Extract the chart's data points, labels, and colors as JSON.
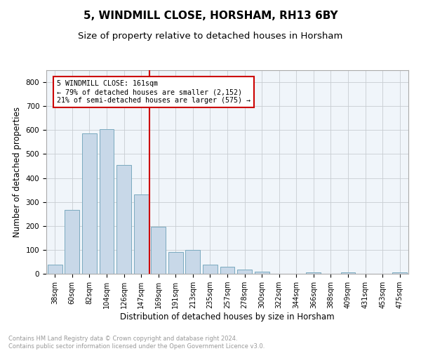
{
  "title": "5, WINDMILL CLOSE, HORSHAM, RH13 6BY",
  "subtitle": "Size of property relative to detached houses in Horsham",
  "xlabel": "Distribution of detached houses by size in Horsham",
  "ylabel": "Number of detached properties",
  "categories": [
    "38sqm",
    "60sqm",
    "82sqm",
    "104sqm",
    "126sqm",
    "147sqm",
    "169sqm",
    "191sqm",
    "213sqm",
    "235sqm",
    "257sqm",
    "278sqm",
    "300sqm",
    "322sqm",
    "344sqm",
    "366sqm",
    "388sqm",
    "409sqm",
    "431sqm",
    "453sqm",
    "475sqm"
  ],
  "values": [
    38,
    267,
    585,
    603,
    455,
    330,
    197,
    90,
    100,
    38,
    30,
    17,
    10,
    0,
    0,
    7,
    0,
    5,
    0,
    0,
    7
  ],
  "bar_color": "#c8d8e8",
  "bar_edge_color": "#7aaabf",
  "vline_color": "#cc0000",
  "annotation_text": "5 WINDMILL CLOSE: 161sqm\n← 79% of detached houses are smaller (2,152)\n21% of semi-detached houses are larger (575) →",
  "annotation_box_color": "#cc0000",
  "ylim": [
    0,
    850
  ],
  "yticks": [
    0,
    100,
    200,
    300,
    400,
    500,
    600,
    700,
    800
  ],
  "footer_text": "Contains HM Land Registry data © Crown copyright and database right 2024.\nContains public sector information licensed under the Open Government Licence v3.0.",
  "plot_bg_color": "#f0f5fa",
  "grid_color": "#c8cdd2",
  "title_fontsize": 11,
  "subtitle_fontsize": 9.5,
  "tick_fontsize": 7,
  "ylabel_fontsize": 8.5,
  "xlabel_fontsize": 8.5,
  "footer_fontsize": 6.0
}
